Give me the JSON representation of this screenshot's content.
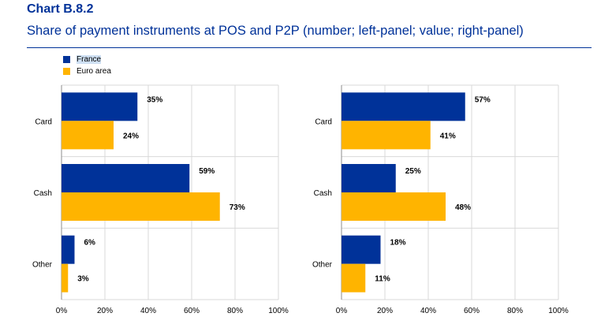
{
  "header": {
    "chart_id": "Chart B.8.2",
    "title": "Share of payment instruments at POS and P2P (number; left-panel; value; right-panel)"
  },
  "colors": {
    "France": "#003299",
    "Euro area": "#FFB400",
    "grid": "#d9d9d9",
    "title": "#003299"
  },
  "chart_data": [
    {
      "type": "bar",
      "orientation": "horizontal",
      "panel": "left",
      "categories": [
        "Card",
        "Cash",
        "Other"
      ],
      "series": [
        {
          "name": "France",
          "values": [
            35,
            59,
            6
          ]
        },
        {
          "name": "Euro area",
          "values": [
            24,
            73,
            3
          ]
        }
      ],
      "data_labels": {
        "France": [
          "35%",
          "59%",
          "6%"
        ],
        "Euro area": [
          "24%",
          "73%",
          "3%"
        ]
      },
      "xlim": [
        0,
        100
      ],
      "xticks": [
        "0%",
        "20%",
        "40%",
        "60%",
        "80%",
        "100%"
      ],
      "grid": true,
      "legend": "top-left"
    },
    {
      "type": "bar",
      "orientation": "horizontal",
      "panel": "right",
      "categories": [
        "Card",
        "Cash",
        "Other"
      ],
      "series": [
        {
          "name": "France",
          "values": [
            57,
            25,
            18
          ]
        },
        {
          "name": "Euro area",
          "values": [
            41,
            48,
            11
          ]
        }
      ],
      "data_labels": {
        "France": [
          "57%",
          "25%",
          "18%"
        ],
        "Euro area": [
          "41%",
          "48%",
          "11%"
        ]
      },
      "xlim": [
        0,
        100
      ],
      "xticks": [
        "0%",
        "20%",
        "40%",
        "60%",
        "80%",
        "100%"
      ],
      "grid": true
    }
  ]
}
